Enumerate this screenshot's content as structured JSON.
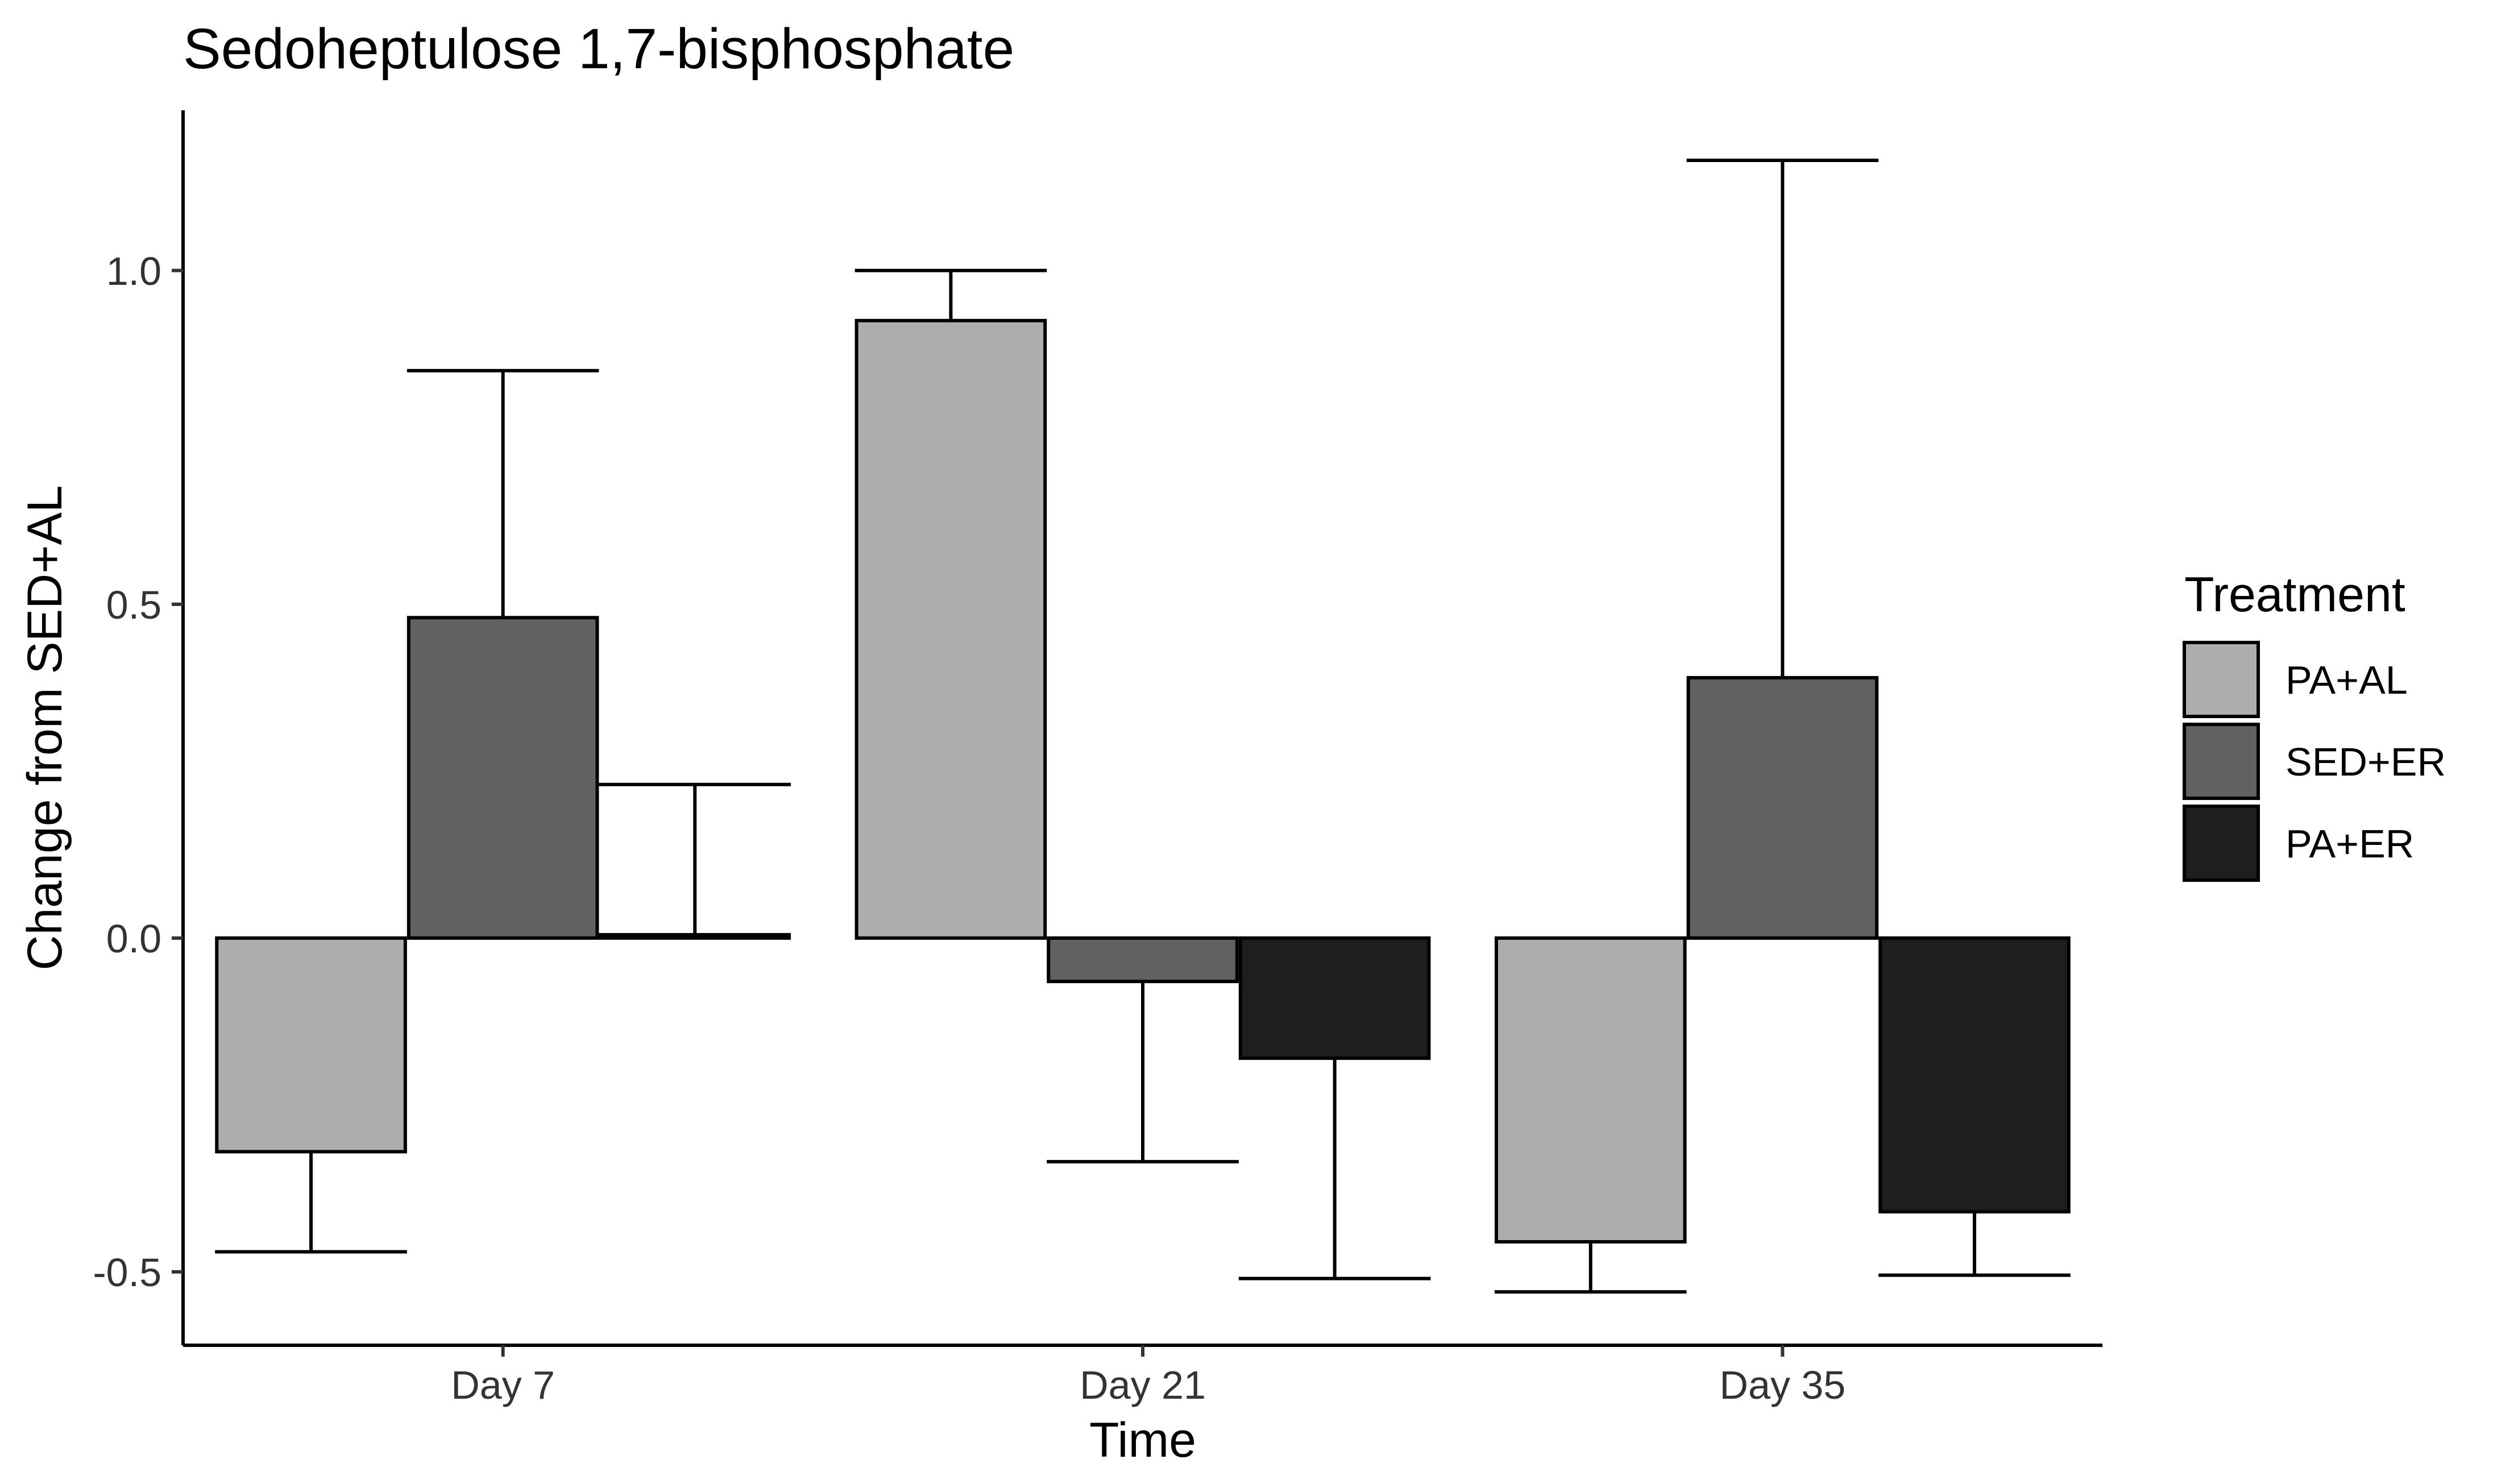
{
  "chart_data": {
    "type": "bar",
    "title": "Sedoheptulose 1,7-bisphosphate",
    "xlabel": "Time",
    "ylabel": "Change from SED+AL",
    "categories": [
      "Day 7",
      "Day 21",
      "Day 35"
    ],
    "ylim": [
      -0.61,
      1.24
    ],
    "yticks": [
      -0.5,
      0.0,
      0.5,
      1.0
    ],
    "ytick_labels": [
      "-0.5",
      "0.0",
      "0.5",
      "1.0"
    ],
    "legend": {
      "title": "Treatment",
      "position": "right"
    },
    "series": [
      {
        "name": "PA+AL",
        "color": "#ADADAD",
        "values": [
          -0.32,
          0.925,
          -0.455
        ],
        "error_bar_end": [
          -0.47,
          1.0,
          -0.53
        ]
      },
      {
        "name": "SED+ER",
        "color": "#616161",
        "values": [
          0.48,
          -0.065,
          0.39
        ],
        "error_bar_end": [
          0.85,
          -0.335,
          1.165
        ]
      },
      {
        "name": "PA+ER",
        "color": "#1E1E1E",
        "values": [
          0.005,
          -0.18,
          -0.41
        ],
        "error_bar_end": [
          0.23,
          -0.51,
          -0.505
        ]
      }
    ],
    "grid": false
  }
}
